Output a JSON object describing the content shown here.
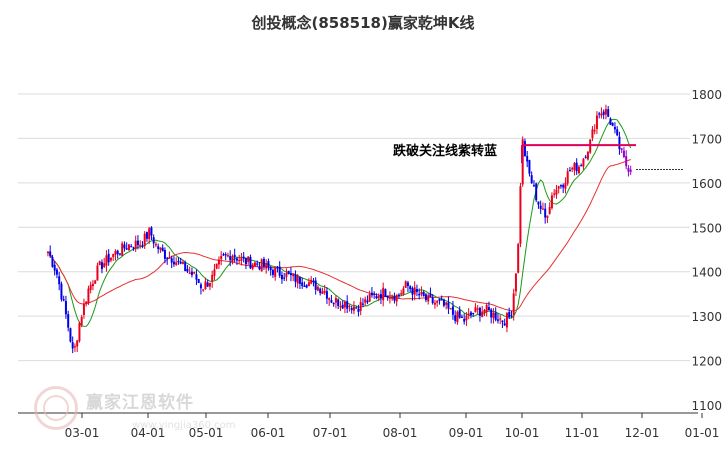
{
  "chart_data": {
    "type": "candlestick",
    "title": "创投概念(858518)赢家乾坤K线",
    "x_tick_labels": [
      "03-01",
      "04-01",
      "05-01",
      "06-01",
      "07-01",
      "08-01",
      "09-01",
      "10-01",
      "11-01",
      "12-01",
      "01-01"
    ],
    "y_tick_labels": [
      "1100",
      "1200",
      "1300",
      "1400",
      "1500",
      "1600",
      "1700",
      "1800"
    ],
    "ylim": [
      1090,
      1830
    ],
    "grid": "horizontal",
    "annotation": "跌破关注线紫转蓝",
    "current_price_line": 1630,
    "attention_line": 1685,
    "colors": {
      "up": "#e8001c",
      "down": "#0000e6",
      "purple": "#9900cc",
      "ma_short": "#1a9a1a",
      "ma_long": "#e83030",
      "attention_line": "#e0005a",
      "grid": "#dcdcdc"
    },
    "price_path": [
      [
        "02-13",
        1445
      ],
      [
        "02-17",
        1400
      ],
      [
        "02-22",
        1290
      ],
      [
        "02-25",
        1210
      ],
      [
        "02-28",
        1290
      ],
      [
        "03-03",
        1360
      ],
      [
        "03-08",
        1410
      ],
      [
        "03-15",
        1440
      ],
      [
        "03-22",
        1460
      ],
      [
        "03-28",
        1465
      ],
      [
        "04-01",
        1490
      ],
      [
        "04-04",
        1460
      ],
      [
        "04-08",
        1440
      ],
      [
        "04-13",
        1430
      ],
      [
        "04-18",
        1410
      ],
      [
        "04-24",
        1390
      ],
      [
        "04-28",
        1365
      ],
      [
        "05-03",
        1385
      ],
      [
        "05-08",
        1430
      ],
      [
        "05-13",
        1440
      ],
      [
        "05-18",
        1425
      ],
      [
        "05-23",
        1420
      ],
      [
        "05-28",
        1415
      ],
      [
        "06-01",
        1405
      ],
      [
        "06-07",
        1395
      ],
      [
        "06-13",
        1385
      ],
      [
        "06-20",
        1375
      ],
      [
        "06-27",
        1360
      ],
      [
        "07-01",
        1335
      ],
      [
        "07-06",
        1330
      ],
      [
        "07-12",
        1320
      ],
      [
        "07-18",
        1340
      ],
      [
        "07-24",
        1355
      ],
      [
        "07-30",
        1345
      ],
      [
        "08-03",
        1370
      ],
      [
        "08-08",
        1350
      ],
      [
        "08-13",
        1335
      ],
      [
        "08-20",
        1325
      ],
      [
        "08-26",
        1300
      ],
      [
        "08-30",
        1290
      ],
      [
        "09-05",
        1310
      ],
      [
        "09-10",
        1315
      ],
      [
        "09-16",
        1300
      ],
      [
        "09-20",
        1290
      ],
      [
        "09-24",
        1300
      ],
      [
        "09-26",
        1370
      ],
      [
        "09-28",
        1460
      ],
      [
        "09-30",
        1700
      ],
      [
        "10-03",
        1630
      ],
      [
        "10-08",
        1560
      ],
      [
        "10-12",
        1520
      ],
      [
        "10-16",
        1580
      ],
      [
        "10-21",
        1600
      ],
      [
        "10-25",
        1630
      ],
      [
        "10-30",
        1640
      ],
      [
        "11-04",
        1690
      ],
      [
        "11-08",
        1760
      ],
      [
        "11-12",
        1760
      ],
      [
        "11-15",
        1730
      ],
      [
        "11-18",
        1690
      ],
      [
        "11-20",
        1660
      ],
      [
        "11-22",
        1640
      ],
      [
        "11-25",
        1630
      ]
    ]
  }
}
